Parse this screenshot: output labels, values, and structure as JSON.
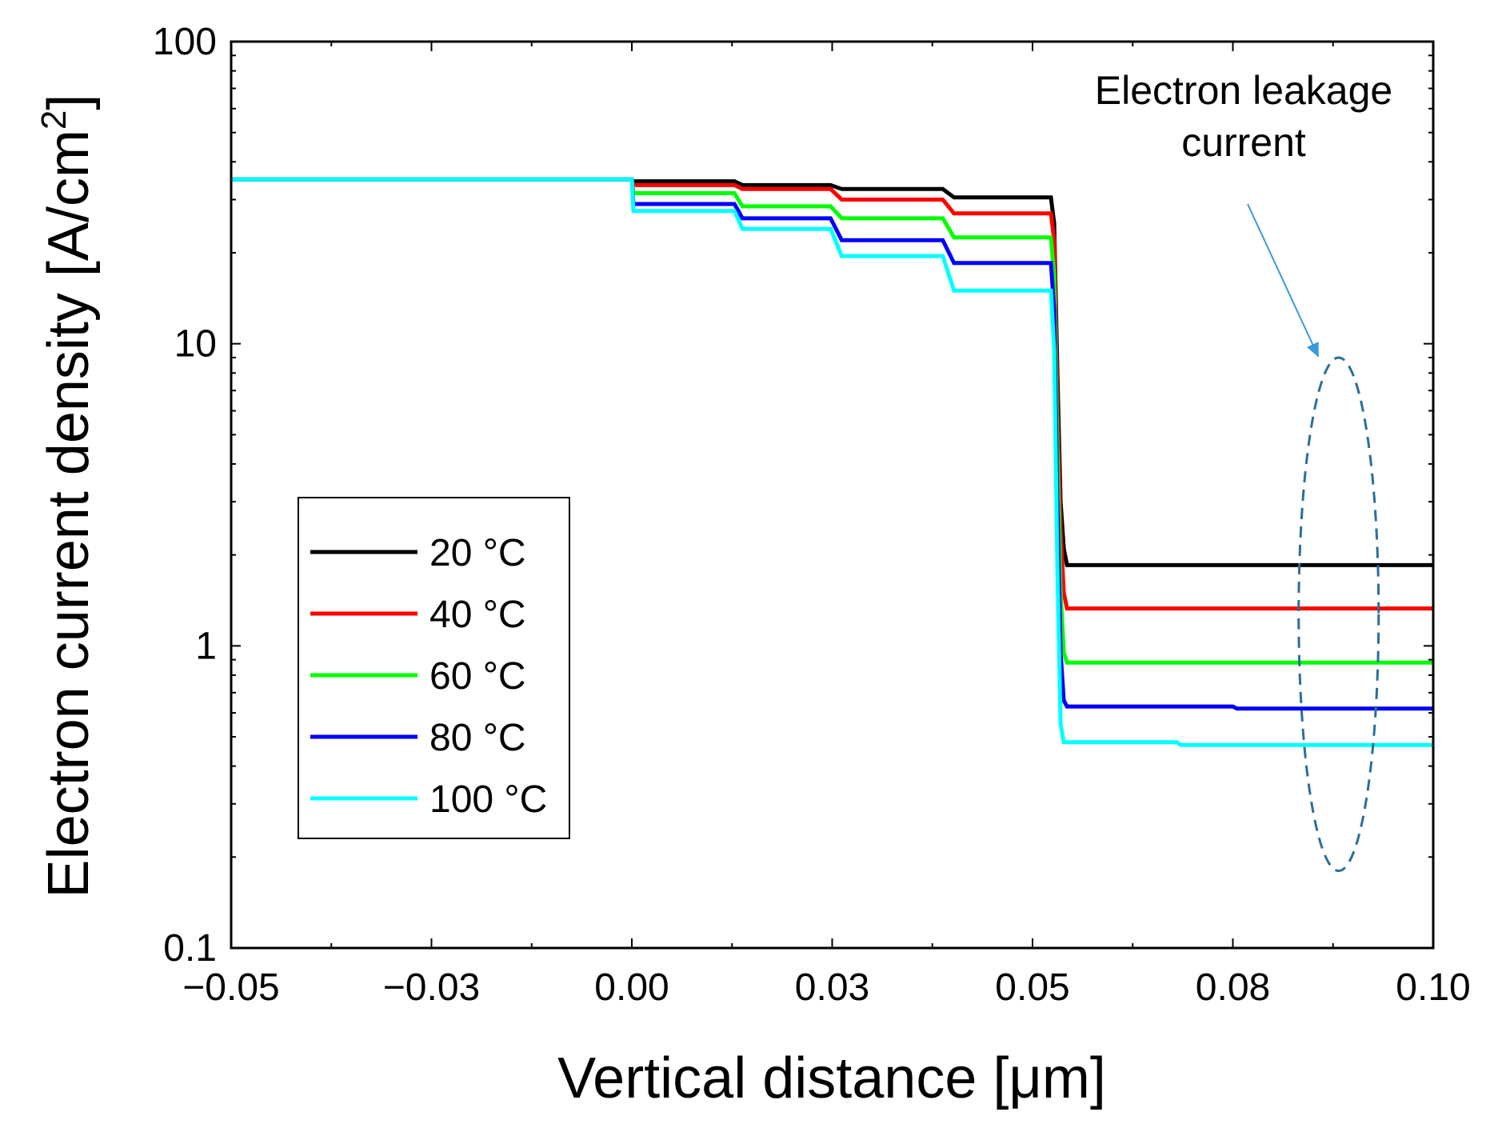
{
  "chart_data": {
    "type": "line",
    "title": "",
    "xlabel": "Vertical distance [μm]",
    "ylabel": "Electron current density [A/cm",
    "ylabel_sup": "2",
    "ylabel_close": "]",
    "xscale": "linear",
    "yscale": "log",
    "xlim": [
      -0.05,
      0.1
    ],
    "ylim": [
      0.1,
      100
    ],
    "xticks": [
      -0.05,
      -0.025,
      0,
      0.025,
      0.05,
      0.075,
      0.1
    ],
    "xtick_labels": [
      "−0.05",
      "−0.03",
      "0.00",
      "0.03",
      "0.05",
      "0.08",
      "0.10"
    ],
    "yticks": [
      0.1,
      1,
      10,
      100
    ],
    "ytick_labels": [
      "0.1",
      "1",
      "10",
      "100"
    ],
    "grid": false,
    "legend_position": "middle-left",
    "series": [
      {
        "name": "20 °C",
        "color": "#000000",
        "x": [
          -0.05,
          0.0,
          0.0002,
          0.0128,
          0.0138,
          0.0248,
          0.0262,
          0.0388,
          0.0402,
          0.0523,
          0.0527,
          0.0531,
          0.0535,
          0.0539,
          0.0543,
          0.1
        ],
        "y": [
          35,
          35,
          34.5,
          34.5,
          33.5,
          33.5,
          32.5,
          32.5,
          30.5,
          30.5,
          25,
          8,
          3,
          2.1,
          1.85,
          1.85
        ]
      },
      {
        "name": "40 °C",
        "color": "#ff0000",
        "x": [
          -0.05,
          0.0,
          0.0002,
          0.0128,
          0.0138,
          0.0248,
          0.0262,
          0.0388,
          0.0402,
          0.0523,
          0.0527,
          0.0531,
          0.0535,
          0.0539,
          0.0543,
          0.1
        ],
        "y": [
          35,
          35,
          33.5,
          33.5,
          32.5,
          32.5,
          30,
          30,
          27,
          27,
          22,
          6,
          2.4,
          1.5,
          1.33,
          1.33
        ]
      },
      {
        "name": "60 °C",
        "color": "#00ff00",
        "x": [
          -0.05,
          0.0,
          0.0002,
          0.0128,
          0.0138,
          0.0248,
          0.0262,
          0.0388,
          0.0402,
          0.0523,
          0.0527,
          0.0531,
          0.0535,
          0.0539,
          0.0543,
          0.1
        ],
        "y": [
          35,
          35,
          31.5,
          31.5,
          28.5,
          28.5,
          26,
          26,
          22.5,
          22.5,
          17,
          4.5,
          1.5,
          0.95,
          0.88,
          0.88
        ]
      },
      {
        "name": "80 °C",
        "color": "#0000ff",
        "x": [
          -0.05,
          0.0,
          0.0002,
          0.0128,
          0.0138,
          0.0248,
          0.0262,
          0.0388,
          0.0402,
          0.0523,
          0.0527,
          0.0531,
          0.0535,
          0.0539,
          0.0543,
          0.075,
          0.0755,
          0.1
        ],
        "y": [
          35,
          35,
          29,
          29,
          26,
          26,
          22,
          22,
          18.5,
          18.5,
          13,
          3,
          0.95,
          0.66,
          0.63,
          0.63,
          0.62,
          0.62
        ]
      },
      {
        "name": "100 °C",
        "color": "#00ffff",
        "x": [
          -0.05,
          0.0,
          0.0002,
          0.0128,
          0.0138,
          0.0248,
          0.0262,
          0.0388,
          0.0402,
          0.0523,
          0.0527,
          0.0531,
          0.0535,
          0.0539,
          0.0543,
          0.068,
          0.0685,
          0.1
        ],
        "y": [
          35,
          35,
          27.5,
          27.5,
          24,
          24,
          19.5,
          19.5,
          15,
          15,
          9.5,
          1.8,
          0.55,
          0.48,
          0.48,
          0.48,
          0.47,
          0.47
        ]
      }
    ],
    "annotation": {
      "text_line1": "Electron leakage",
      "text_line2": "current",
      "ellipse_x": 0.0882,
      "ellipse_y_range": [
        0.18,
        9
      ]
    }
  }
}
